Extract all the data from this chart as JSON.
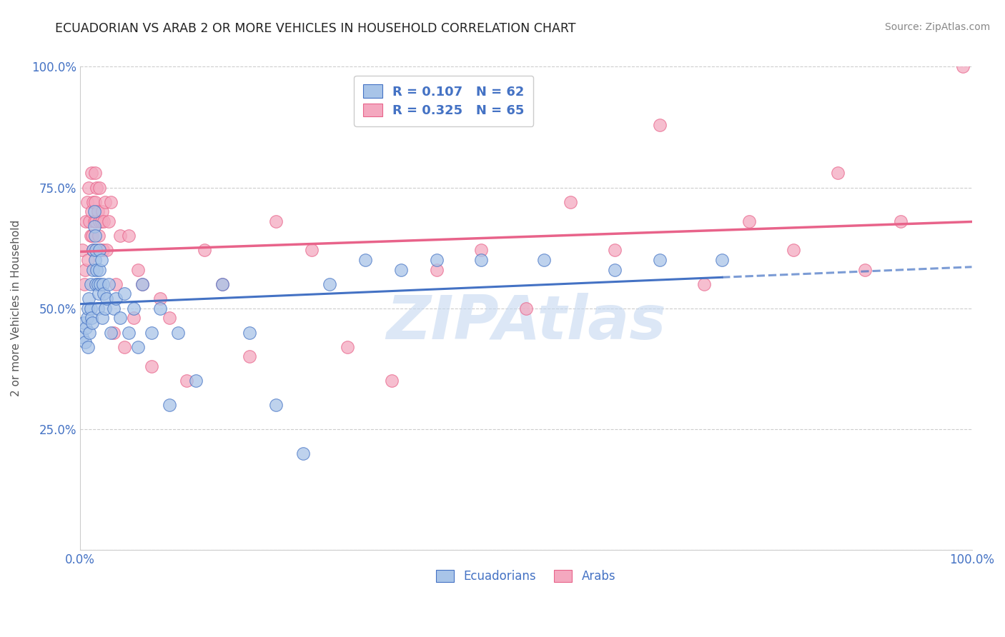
{
  "title": "ECUADORIAN VS ARAB 2 OR MORE VEHICLES IN HOUSEHOLD CORRELATION CHART",
  "source": "Source: ZipAtlas.com",
  "ylabel": "2 or more Vehicles in Household",
  "ytick_labels": [
    "",
    "25.0%",
    "50.0%",
    "75.0%",
    "100.0%"
  ],
  "ytick_values": [
    0.0,
    0.25,
    0.5,
    0.75,
    1.0
  ],
  "xtick_labels": [
    "0.0%",
    "",
    "",
    "",
    "100.0%"
  ],
  "xtick_values": [
    0.0,
    0.25,
    0.5,
    0.75,
    1.0
  ],
  "r_ecuadorian": 0.107,
  "n_ecuadorian": 62,
  "r_arab": 0.325,
  "n_arab": 65,
  "ecuadorian_color": "#a8c4e8",
  "arab_color": "#f4a8bf",
  "ecuadorian_line_color": "#4472c4",
  "arab_line_color": "#e8638a",
  "watermark_color": "#c5d8f0",
  "background_color": "#ffffff",
  "grid_color": "#cccccc",
  "ecuadorian_x": [
    0.003,
    0.004,
    0.006,
    0.007,
    0.008,
    0.009,
    0.009,
    0.01,
    0.011,
    0.012,
    0.012,
    0.013,
    0.014,
    0.015,
    0.015,
    0.016,
    0.016,
    0.017,
    0.017,
    0.018,
    0.018,
    0.019,
    0.02,
    0.02,
    0.021,
    0.022,
    0.022,
    0.023,
    0.024,
    0.025,
    0.026,
    0.027,
    0.028,
    0.03,
    0.032,
    0.035,
    0.038,
    0.04,
    0.045,
    0.05,
    0.055,
    0.06,
    0.065,
    0.07,
    0.08,
    0.09,
    0.1,
    0.11,
    0.13,
    0.16,
    0.19,
    0.22,
    0.25,
    0.28,
    0.32,
    0.36,
    0.4,
    0.45,
    0.52,
    0.6,
    0.65,
    0.72
  ],
  "ecuadorian_y": [
    0.44,
    0.47,
    0.43,
    0.46,
    0.48,
    0.5,
    0.42,
    0.52,
    0.45,
    0.5,
    0.55,
    0.48,
    0.47,
    0.58,
    0.62,
    0.67,
    0.7,
    0.6,
    0.65,
    0.62,
    0.55,
    0.58,
    0.5,
    0.55,
    0.53,
    0.62,
    0.58,
    0.55,
    0.6,
    0.48,
    0.55,
    0.53,
    0.5,
    0.52,
    0.55,
    0.45,
    0.5,
    0.52,
    0.48,
    0.53,
    0.45,
    0.5,
    0.42,
    0.55,
    0.45,
    0.5,
    0.3,
    0.45,
    0.35,
    0.55,
    0.45,
    0.3,
    0.2,
    0.55,
    0.6,
    0.58,
    0.6,
    0.6,
    0.6,
    0.58,
    0.6,
    0.6
  ],
  "arab_x": [
    0.003,
    0.005,
    0.006,
    0.007,
    0.008,
    0.009,
    0.01,
    0.011,
    0.012,
    0.013,
    0.013,
    0.014,
    0.015,
    0.015,
    0.016,
    0.017,
    0.017,
    0.018,
    0.018,
    0.019,
    0.02,
    0.021,
    0.022,
    0.022,
    0.023,
    0.024,
    0.025,
    0.026,
    0.027,
    0.028,
    0.03,
    0.032,
    0.035,
    0.038,
    0.04,
    0.045,
    0.05,
    0.055,
    0.06,
    0.065,
    0.07,
    0.08,
    0.09,
    0.1,
    0.12,
    0.14,
    0.16,
    0.19,
    0.22,
    0.26,
    0.3,
    0.35,
    0.4,
    0.45,
    0.5,
    0.55,
    0.6,
    0.65,
    0.7,
    0.75,
    0.8,
    0.85,
    0.88,
    0.92,
    0.99
  ],
  "arab_y": [
    0.62,
    0.55,
    0.58,
    0.68,
    0.72,
    0.6,
    0.75,
    0.68,
    0.65,
    0.7,
    0.78,
    0.65,
    0.72,
    0.62,
    0.68,
    0.78,
    0.72,
    0.62,
    0.68,
    0.75,
    0.7,
    0.65,
    0.68,
    0.75,
    0.62,
    0.68,
    0.7,
    0.62,
    0.68,
    0.72,
    0.62,
    0.68,
    0.72,
    0.45,
    0.55,
    0.65,
    0.42,
    0.65,
    0.48,
    0.58,
    0.55,
    0.38,
    0.52,
    0.48,
    0.35,
    0.62,
    0.55,
    0.4,
    0.68,
    0.62,
    0.42,
    0.35,
    0.58,
    0.62,
    0.5,
    0.72,
    0.62,
    0.88,
    0.55,
    0.68,
    0.62,
    0.78,
    0.58,
    0.68,
    1.0
  ]
}
